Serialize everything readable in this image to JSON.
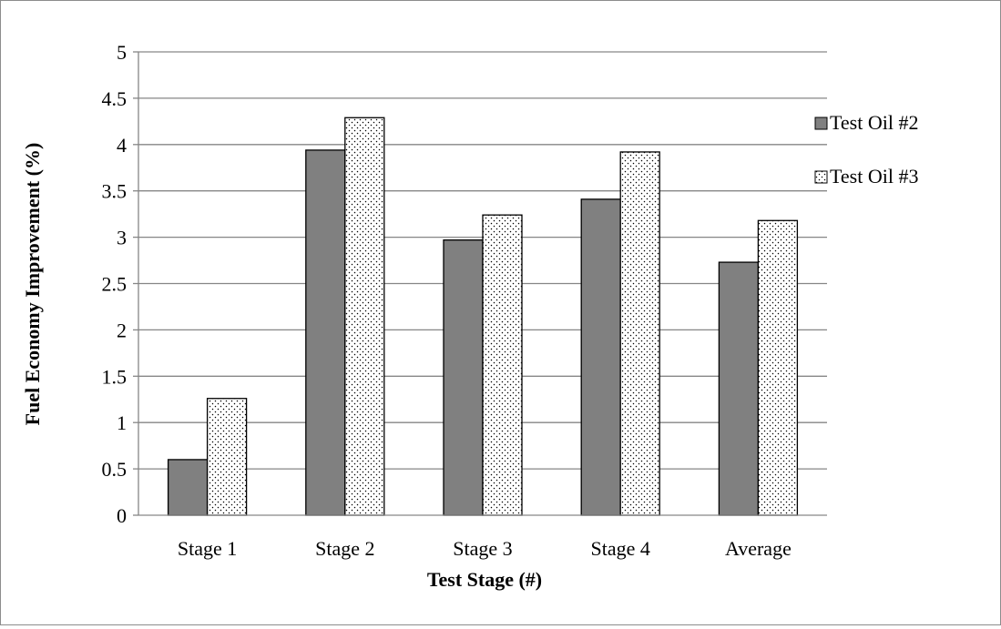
{
  "chart_data": {
    "type": "bar",
    "title": "",
    "xlabel": "Test Stage (#)",
    "ylabel": "Fuel Economy Improvement (%)",
    "categories": [
      "Stage 1",
      "Stage 2",
      "Stage 3",
      "Stage 4",
      "Average"
    ],
    "series": [
      {
        "name": "Test Oil #2",
        "values": [
          0.6,
          3.94,
          2.97,
          3.41,
          2.73
        ],
        "fill": "#808080",
        "pattern": "solid"
      },
      {
        "name": "Test Oil #3",
        "values": [
          1.26,
          4.29,
          3.24,
          3.92,
          3.18
        ],
        "fill": "#ffffff",
        "pattern": "dots"
      }
    ],
    "ylim": [
      0,
      5
    ],
    "yticks": [
      "0",
      "0.5",
      "1",
      "1.5",
      "2",
      "2.5",
      "3",
      "3.5",
      "4",
      "4.5",
      "5"
    ],
    "grid": true,
    "legend_position": "right"
  }
}
